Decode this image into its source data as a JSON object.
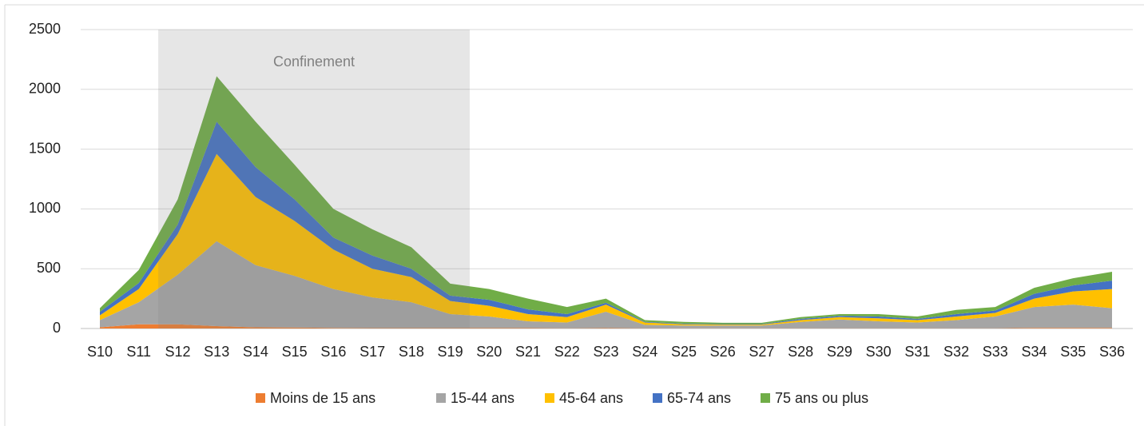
{
  "chart_data": {
    "type": "stacked_area",
    "categories": [
      "S10",
      "S11",
      "S12",
      "S13",
      "S14",
      "S15",
      "S16",
      "S17",
      "S18",
      "S19",
      "S20",
      "S21",
      "S22",
      "S23",
      "S24",
      "S25",
      "S26",
      "S27",
      "S28",
      "S29",
      "S30",
      "S31",
      "S32",
      "S33",
      "S34",
      "S35",
      "S36"
    ],
    "series": [
      {
        "name": "Moins de 15 ans",
        "color": "#ed7d31",
        "values": [
          10,
          35,
          35,
          20,
          10,
          8,
          5,
          3,
          3,
          3,
          3,
          3,
          2,
          3,
          2,
          2,
          2,
          2,
          2,
          2,
          2,
          2,
          2,
          2,
          5,
          5,
          5
        ]
      },
      {
        "name": "15-44 ans",
        "color": "#a5a5a5",
        "values": [
          60,
          185,
          415,
          710,
          520,
          432,
          325,
          257,
          217,
          117,
          97,
          57,
          48,
          137,
          28,
          23,
          23,
          23,
          53,
          73,
          58,
          48,
          68,
          98,
          175,
          195,
          165
        ]
      },
      {
        "name": "45-64 ans",
        "color": "#ffc000",
        "values": [
          40,
          110,
          340,
          730,
          570,
          460,
          330,
          240,
          210,
          110,
          90,
          60,
          45,
          60,
          20,
          10,
          8,
          8,
          15,
          20,
          25,
          20,
          30,
          30,
          70,
          110,
          160
        ]
      },
      {
        "name": "65-74 ans",
        "color": "#4472c4",
        "values": [
          30,
          50,
          80,
          270,
          250,
          180,
          100,
          110,
          70,
          45,
          50,
          40,
          25,
          15,
          5,
          5,
          4,
          4,
          10,
          10,
          15,
          10,
          20,
          20,
          40,
          50,
          70
        ]
      },
      {
        "name": "75 ans ou plus",
        "color": "#70ad47",
        "values": [
          30,
          110,
          210,
          380,
          380,
          290,
          240,
          220,
          180,
          100,
          90,
          90,
          60,
          35,
          15,
          15,
          11,
          11,
          15,
          15,
          20,
          20,
          35,
          30,
          50,
          60,
          75
        ]
      }
    ],
    "ylim": [
      0,
      2500
    ],
    "yticks": [
      0,
      500,
      1000,
      1500,
      2000,
      2500
    ],
    "grid": true,
    "shaded_region": {
      "label": "Confinement",
      "from": "S12",
      "to": "S19"
    },
    "legend": "bottom"
  }
}
